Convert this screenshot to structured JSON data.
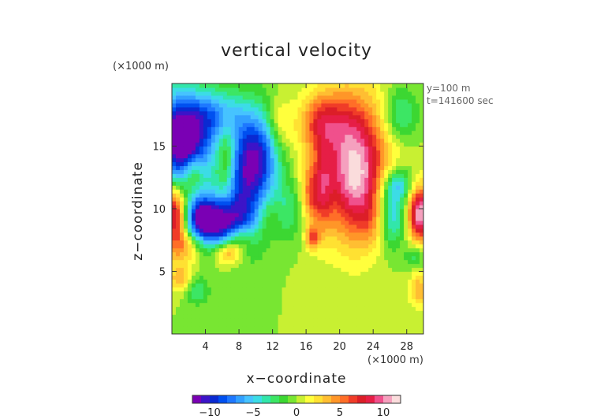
{
  "chart_data": {
    "type": "heatmap",
    "title": "vertical velocity",
    "xlabel": "x−coordinate",
    "ylabel": "z−coordinate",
    "x_unit": "(×1000 m)",
    "y_unit": "(×1000 m)",
    "annotations": [
      "y=100 m",
      "t=141600 sec"
    ],
    "xlim": [
      0,
      30
    ],
    "ylim": [
      0,
      20
    ],
    "x_ticks": [
      4,
      8,
      12,
      16,
      20,
      24,
      28
    ],
    "y_ticks": [
      5,
      10,
      15
    ],
    "x_tick_labels": [
      "4",
      "8",
      "12",
      "16",
      "20",
      "24",
      "28"
    ],
    "y_tick_labels": [
      "5",
      "10",
      "15"
    ],
    "grid": false,
    "colorbar": {
      "range": [
        -12,
        12
      ],
      "ticks": [
        -10,
        -5,
        0,
        5,
        10
      ],
      "tick_labels": [
        "−10",
        "−5",
        "0",
        "5",
        "10"
      ],
      "colors": [
        "#7a00b4",
        "#3c14c8",
        "#0a2ad2",
        "#0050f0",
        "#1e78ff",
        "#32a0ff",
        "#46c3ff",
        "#3cdce6",
        "#32e6aa",
        "#3ce664",
        "#3cd732",
        "#78e632",
        "#c8f032",
        "#ffff3c",
        "#ffe132",
        "#ffbe32",
        "#ff9628",
        "#ff6e28",
        "#f03c28",
        "#dc1e28",
        "#e61e46",
        "#f0508c",
        "#f5a0be",
        "#fadcdc"
      ]
    },
    "features": [
      {
        "name": "upper-left updraft-down core",
        "x": 1.5,
        "z": 14.8,
        "value": -9
      },
      {
        "name": "left-edge warm core",
        "x": 0.5,
        "z": 9.5,
        "value": 9
      },
      {
        "name": "central diagonal downdraft",
        "x": 10.0,
        "z": 13.5,
        "value": -9
      },
      {
        "name": "lower-left downdraft",
        "x": 5.5,
        "z": 8.8,
        "value": -10
      },
      {
        "name": "main updraft core",
        "x": 21.5,
        "z": 13.0,
        "value": 10
      },
      {
        "name": "right-edge updraft",
        "x": 29.6,
        "z": 9.6,
        "value": 10
      },
      {
        "name": "right downdraft",
        "x": 26.0,
        "z": 9.5,
        "value": -6
      }
    ]
  }
}
